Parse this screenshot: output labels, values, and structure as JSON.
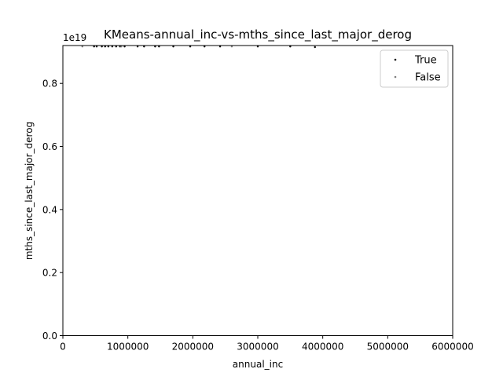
{
  "chart_data": {
    "type": "scatter",
    "title": "KMeans-annual_inc-vs-mths_since_last_major_derog",
    "xlabel": "annual_inc",
    "ylabel": "mths_since_last_major_derog",
    "y_offset_label": "1e19",
    "xlim": [
      0,
      6000000
    ],
    "ylim": [
      0,
      0.92
    ],
    "x_ticks": [
      0,
      1000000,
      2000000,
      3000000,
      4000000,
      5000000,
      6000000
    ],
    "x_tick_labels": [
      "0",
      "1000000",
      "2000000",
      "3000000",
      "4000000",
      "5000000",
      "6000000"
    ],
    "y_ticks": [
      0,
      0.2,
      0.4,
      0.6,
      0.8
    ],
    "y_tick_labels": [
      "0.0",
      "0.2",
      "0.4",
      "0.6",
      "0.8"
    ],
    "grid": false,
    "legend_position": "top-right",
    "series": [
      {
        "name": "True",
        "color": "#000000",
        "points": [
          {
            "x": 480000,
            "y": 0.917
          },
          {
            "x": 520000,
            "y": 0.917
          },
          {
            "x": 600000,
            "y": 0.917
          },
          {
            "x": 650000,
            "y": 0.917
          },
          {
            "x": 700000,
            "y": 0.917
          },
          {
            "x": 760000,
            "y": 0.917
          },
          {
            "x": 820000,
            "y": 0.917
          },
          {
            "x": 880000,
            "y": 0.917
          },
          {
            "x": 950000,
            "y": 0.917
          },
          {
            "x": 1150000,
            "y": 0.917
          },
          {
            "x": 1250000,
            "y": 0.917
          },
          {
            "x": 1420000,
            "y": 0.917
          },
          {
            "x": 1480000,
            "y": 0.917
          },
          {
            "x": 1700000,
            "y": 0.917
          },
          {
            "x": 1960000,
            "y": 0.917
          },
          {
            "x": 2180000,
            "y": 0.917
          },
          {
            "x": 2420000,
            "y": 0.917
          },
          {
            "x": 3000000,
            "y": 0.917
          },
          {
            "x": 3500000,
            "y": 0.917
          },
          {
            "x": 3880000,
            "y": 0.915
          }
        ]
      },
      {
        "name": "False",
        "color": "#808080",
        "points": [
          {
            "x": 300000,
            "y": 0.917
          },
          {
            "x": 900000,
            "y": 0.917
          },
          {
            "x": 2600000,
            "y": 0.917
          }
        ]
      }
    ]
  }
}
